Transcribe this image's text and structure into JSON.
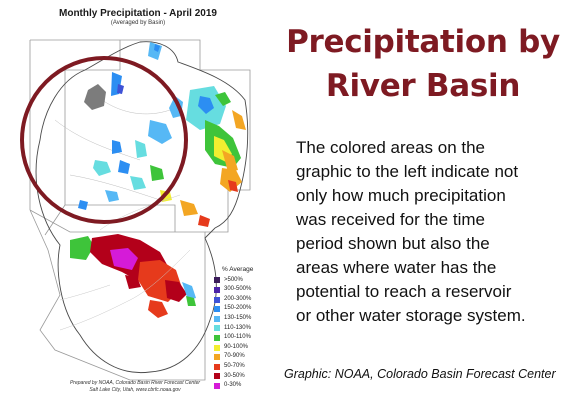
{
  "map": {
    "title": "Monthly Precipitation - April 2019",
    "subtitle": "(Averaged by Basin)",
    "legend": {
      "title": "% Average",
      "items": [
        {
          "label": ">500%",
          "color": "#3b1c5a"
        },
        {
          "label": "300-500%",
          "color": "#4b22a8"
        },
        {
          "label": "200-300%",
          "color": "#3e52d6"
        },
        {
          "label": "150-200%",
          "color": "#2c8ef2"
        },
        {
          "label": "130-150%",
          "color": "#56b8f5"
        },
        {
          "label": "110-130%",
          "color": "#66dde0"
        },
        {
          "label": "100-110%",
          "color": "#3ec43a"
        },
        {
          "label": "90-100%",
          "color": "#f2ee30"
        },
        {
          "label": "70-90%",
          "color": "#f3a623"
        },
        {
          "label": "50-70%",
          "color": "#e63a1c"
        },
        {
          "label": "30-50%",
          "color": "#b3001a"
        },
        {
          "label": "0-30%",
          "color": "#d51bd8"
        }
      ]
    },
    "credits": [
      "Prepared by NOAA, Colorado Basin River Forecast Center",
      "Salt Lake City, Utah, www.cbrfc.noaa.gov"
    ],
    "highlight_color": "#7e1a22"
  },
  "headline": {
    "line1": "Precipitation by",
    "line2": "River Basin"
  },
  "body_lines": [
    "The colored areas on the",
    "graphic to the left indicate not",
    "only how much precipitation",
    "was received for the time",
    "period shown but also the",
    "areas where water has the",
    "potential to reach a reservoir",
    "or other water storage system."
  ],
  "caption": "Graphic: NOAA, Colorado Basin Forecast Center"
}
